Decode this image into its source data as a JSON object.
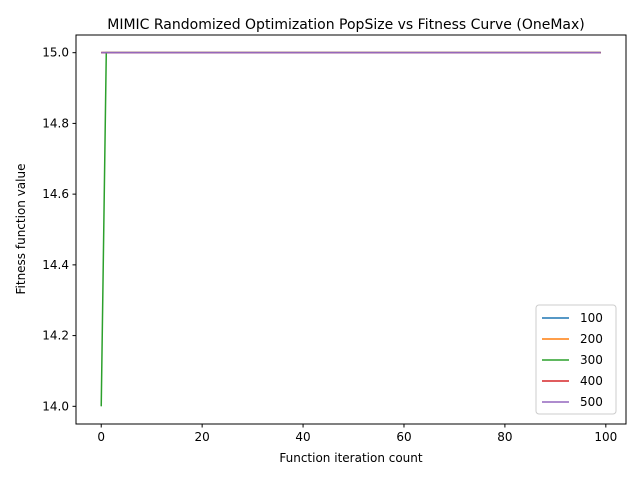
{
  "chart_data": {
    "type": "line",
    "title": "MIMIC Randomized Optimization PopSize vs Fitness Curve (OneMax)",
    "xlabel": "Function iteration count",
    "ylabel": "Fitness function value",
    "xlim": [
      -5,
      104
    ],
    "ylim": [
      13.95,
      15.05
    ],
    "xticks": [
      0,
      20,
      40,
      60,
      80,
      100
    ],
    "yticks": [
      14.0,
      14.2,
      14.4,
      14.6,
      14.8,
      15.0
    ],
    "xtick_labels": [
      "0",
      "20",
      "40",
      "60",
      "80",
      "100"
    ],
    "ytick_labels": [
      "14.0",
      "14.2",
      "14.4",
      "14.6",
      "14.8",
      "15.0"
    ],
    "grid": false,
    "legend_position": "bottom-right",
    "series": [
      {
        "name": "100",
        "color": "#1f77b4",
        "x": [
          0,
          99
        ],
        "y": [
          15.0,
          15.0
        ]
      },
      {
        "name": "200",
        "color": "#ff7f0e",
        "x": [
          0,
          99
        ],
        "y": [
          15.0,
          15.0
        ]
      },
      {
        "name": "300",
        "color": "#2ca02c",
        "x": [
          0,
          1,
          99
        ],
        "y": [
          14.0,
          15.0,
          15.0
        ]
      },
      {
        "name": "400",
        "color": "#d62728",
        "x": [
          0,
          99
        ],
        "y": [
          15.0,
          15.0
        ]
      },
      {
        "name": "500",
        "color": "#9467bd",
        "x": [
          0,
          99
        ],
        "y": [
          15.0,
          15.0
        ]
      }
    ]
  }
}
